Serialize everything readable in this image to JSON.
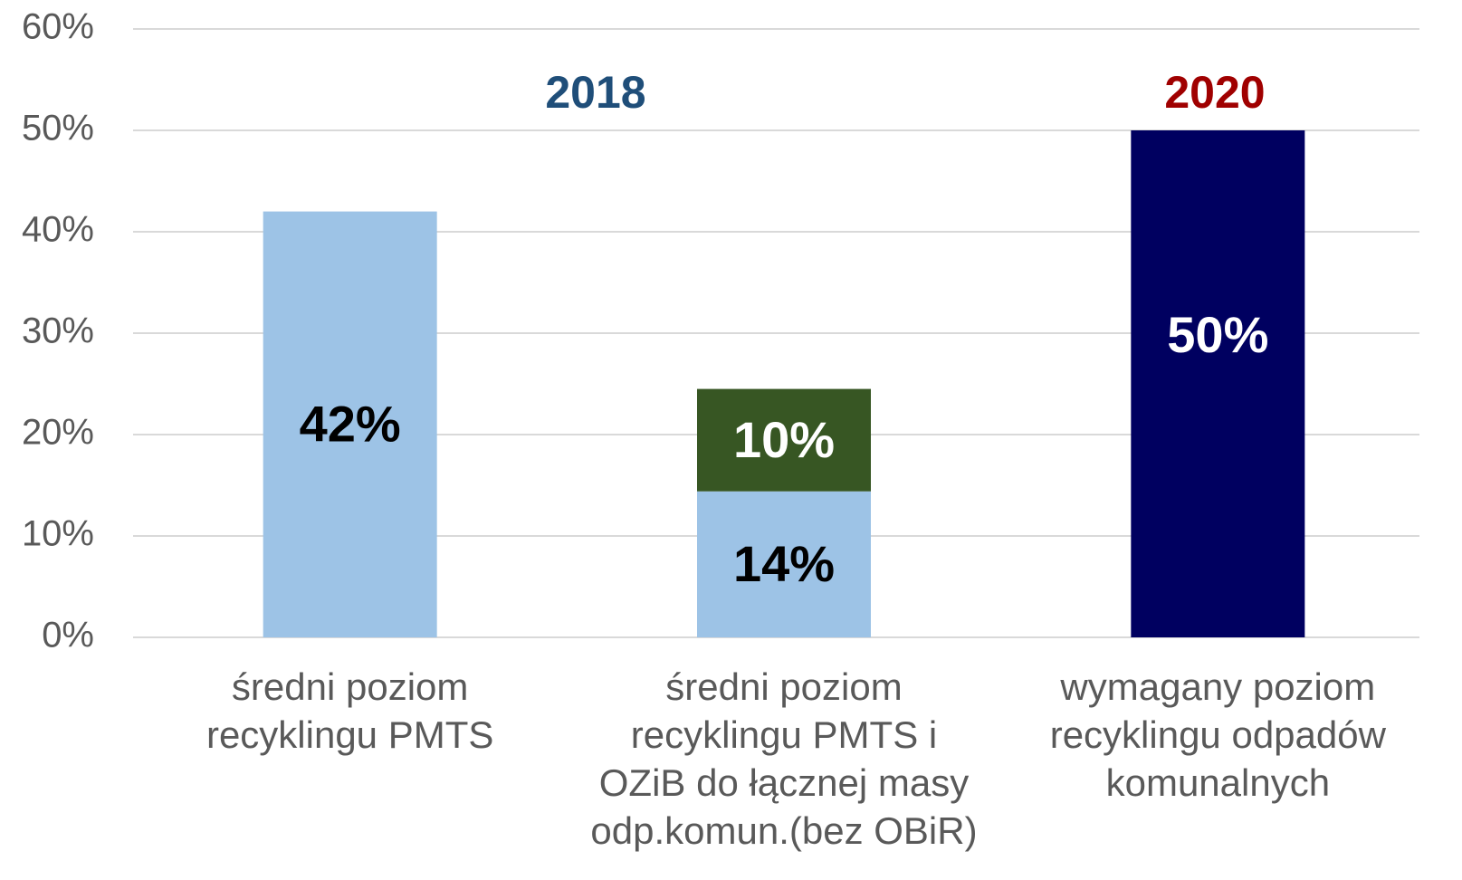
{
  "chart_data": {
    "type": "stacked_bar",
    "categories": [
      [
        "średni poziom",
        "recyklingu PMTS"
      ],
      [
        "średni poziom",
        "recyklingu PMTS i",
        "OZiB do łącznej masy",
        "odp.komun.(bez OBiR)"
      ],
      [
        "wymagany poziom",
        "recyklingu odpadów",
        "komunalnych"
      ]
    ],
    "series": [
      {
        "color": "#9dc3e6",
        "label_color": "#000000",
        "values": [
          42,
          14.4,
          null
        ],
        "value_labels": [
          "42%",
          "14%",
          null
        ]
      },
      {
        "color": "#375623",
        "label_color": "#ffffff",
        "values": [
          null,
          10.1,
          null
        ],
        "value_labels": [
          null,
          "10%",
          null
        ]
      },
      {
        "color": "#000060",
        "label_color": "#ffffff",
        "values": [
          null,
          null,
          50
        ],
        "value_labels": [
          null,
          null,
          "50%"
        ]
      }
    ],
    "annotations": [
      {
        "text": "2018",
        "color": "#1f4e79"
      },
      {
        "text": "2020",
        "color": "#a00000"
      }
    ],
    "ylim": [
      0,
      60
    ],
    "yticks": [
      {
        "value": 0,
        "label": "0%"
      },
      {
        "value": 10,
        "label": "10%"
      },
      {
        "value": 20,
        "label": "20%"
      },
      {
        "value": 30,
        "label": "30%"
      },
      {
        "value": 40,
        "label": "40%"
      },
      {
        "value": 50,
        "label": "50%"
      },
      {
        "value": 60,
        "label": "60%"
      }
    ],
    "grid": true
  }
}
